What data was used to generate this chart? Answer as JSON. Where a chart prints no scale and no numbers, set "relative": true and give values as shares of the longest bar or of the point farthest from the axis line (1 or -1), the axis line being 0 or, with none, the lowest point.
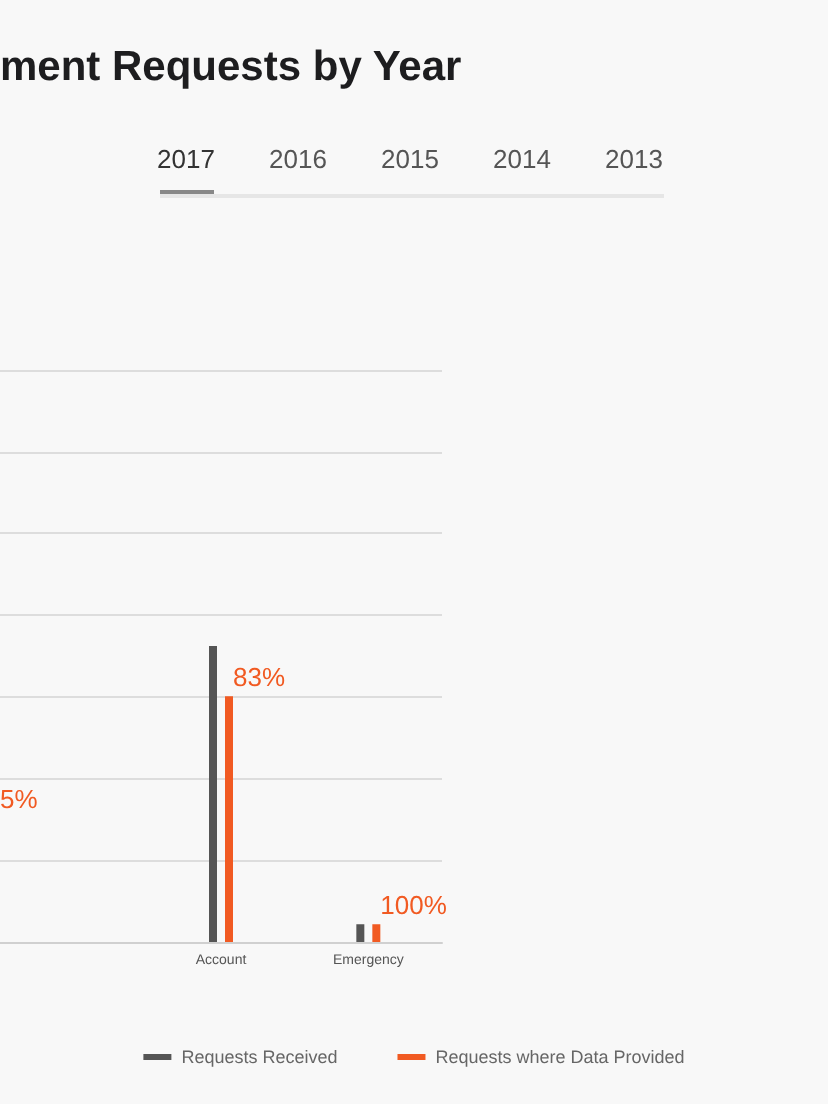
{
  "chart_data": {
    "type": "bar",
    "title": "ment Requests by Year",
    "relative": true,
    "grid": "y",
    "legend": "bottom",
    "categories": [
      null,
      "Account",
      "Emergency"
    ],
    "series": [
      {
        "name": "Requests Received",
        "color": "#555555",
        "values": [
          null,
          1,
          0.06
        ]
      },
      {
        "name": "Requests where Data Provided",
        "color": "#f15a22",
        "values": [
          null,
          0.83,
          0.06
        ]
      }
    ],
    "annotations": [
      "5%",
      "2017",
      "2016",
      "2015",
      "2014",
      "2013",
      {
        "text": "83%",
        "x": "Account",
        "y": 0.83
      },
      {
        "text": "100%",
        "x": "Emergency",
        "y": 0.06
      }
    ]
  }
}
